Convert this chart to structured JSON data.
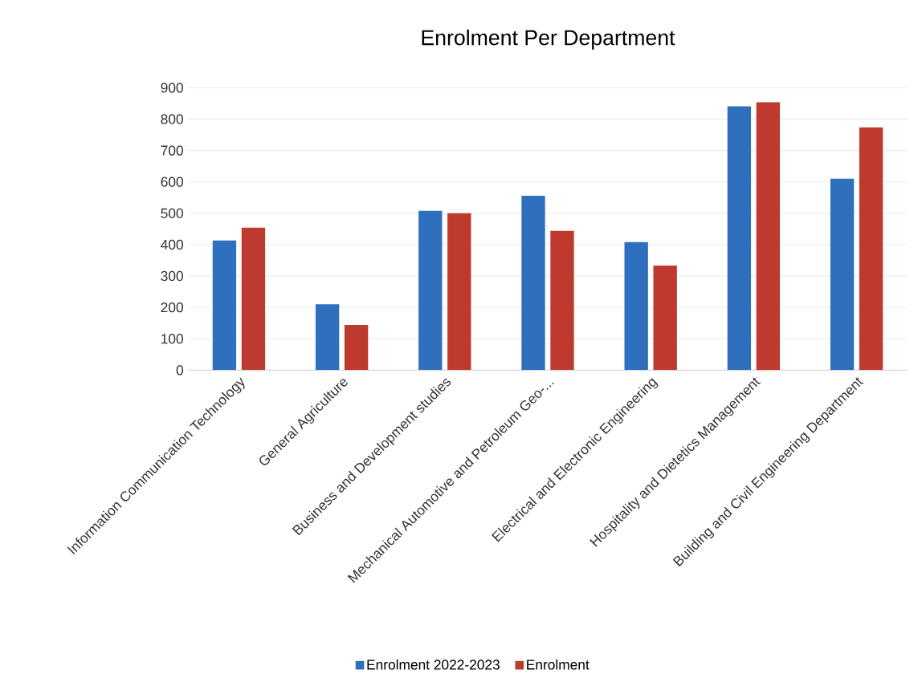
{
  "chart_data": {
    "type": "bar",
    "title": "Enrolment Per Department",
    "categories": [
      "Information Communication Technology",
      "General Agriculture",
      "Business and Development studies",
      "Mechanical Automotive and Petroleum Geo-...",
      "Electrical and Electronic Engineering",
      "Hospitality and Dietetics Management",
      "Building and Civil Engineering Department"
    ],
    "series": [
      {
        "name": "Enrolment 2022-2023",
        "color": "#2e6fbe",
        "values": [
          413,
          210,
          508,
          556,
          408,
          841,
          610
        ]
      },
      {
        "name": "Enrolment",
        "color": "#be3a2e",
        "values": [
          454,
          144,
          500,
          444,
          333,
          854,
          774
        ]
      }
    ],
    "ylim": [
      0,
      900
    ],
    "yticks": [
      0,
      100,
      200,
      300,
      400,
      500,
      600,
      700,
      800,
      900
    ],
    "grid": "y",
    "legend": "bottom"
  }
}
